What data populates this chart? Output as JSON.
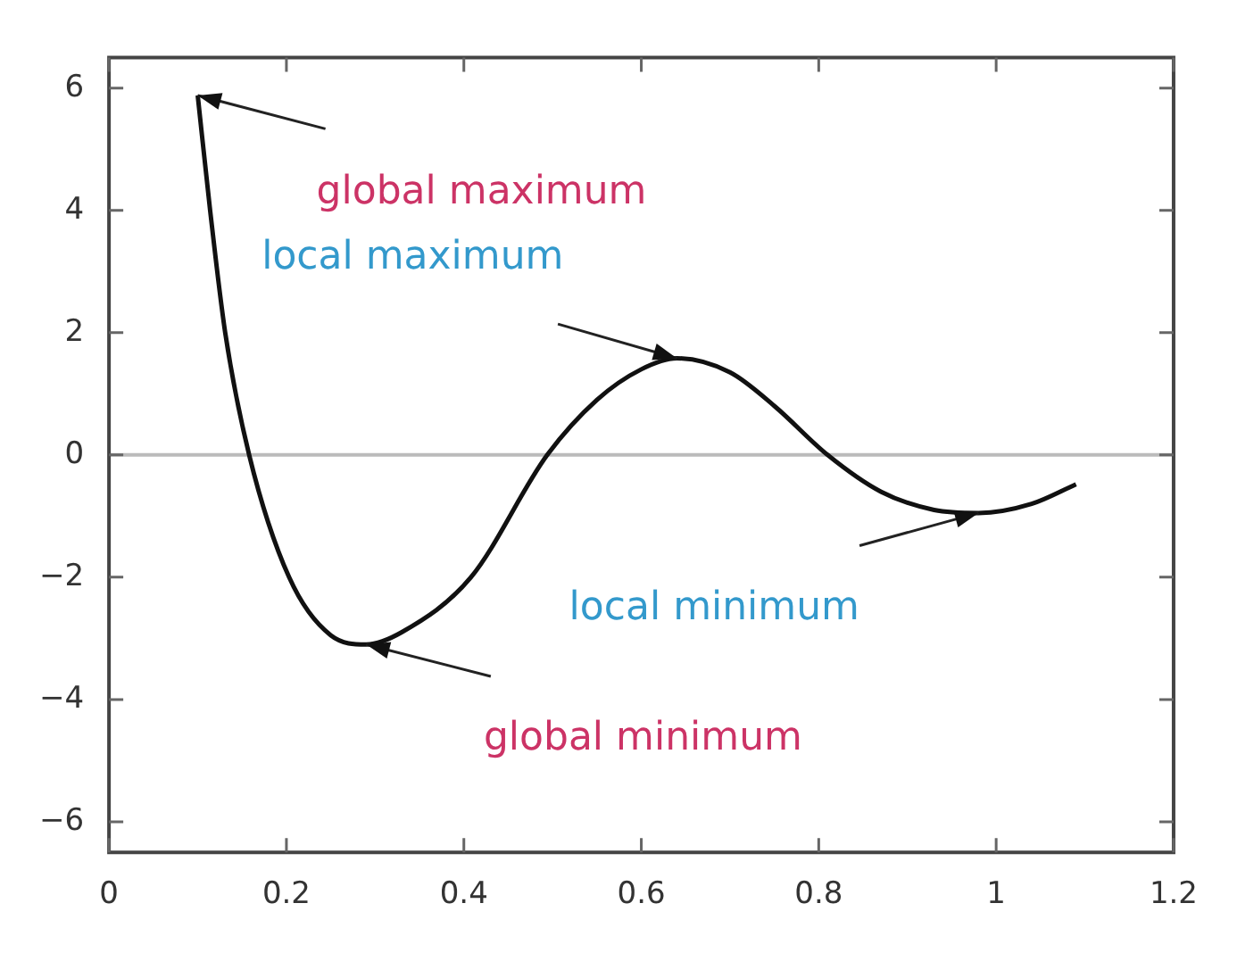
{
  "chart_data": {
    "type": "line",
    "x": [
      0.1,
      0.114,
      0.131,
      0.158,
      0.203,
      0.25,
      0.29,
      0.33,
      0.408,
      0.494,
      0.55,
      0.6,
      0.64,
      0.7,
      0.75,
      0.81,
      0.87,
      0.93,
      0.98,
      1.04,
      1.09
    ],
    "series": [
      {
        "color": "#111111",
        "values": [
          5.88,
          4,
          2,
          0,
          -2,
          -2.95,
          -3.1,
          -2.9,
          -2,
          0,
          0.9,
          1.4,
          1.58,
          1.35,
          0.8,
          0,
          -0.6,
          -0.9,
          -0.95,
          -0.8,
          -0.48
        ]
      }
    ],
    "xlim": [
      0,
      1.2
    ],
    "xticks": [
      0,
      0.2,
      0.4,
      0.6,
      0.8,
      1,
      1.2
    ],
    "ylim": [
      -6.5,
      6.5
    ],
    "yticks": [
      {
        "value": -6,
        "label": "−6"
      },
      {
        "value": -4,
        "label": "−4"
      },
      {
        "value": -2,
        "label": "−2"
      },
      0,
      2,
      4,
      6
    ],
    "ref_lines": [
      {
        "axis": "y",
        "value": 0,
        "color": "#bbbbbb"
      }
    ],
    "annotations": [
      {
        "text": "global maximum",
        "x": 0.1,
        "y": 5.88
      },
      {
        "text": "local maximum",
        "x": 0.64,
        "y": 1.58
      },
      {
        "text": "local minimum",
        "x": 0.98,
        "y": -0.95
      },
      {
        "text": "global minimum",
        "x": 0.29,
        "y": -3.1
      }
    ],
    "grid": false,
    "legend": false,
    "marker": "none",
    "line_style": "solid"
  }
}
